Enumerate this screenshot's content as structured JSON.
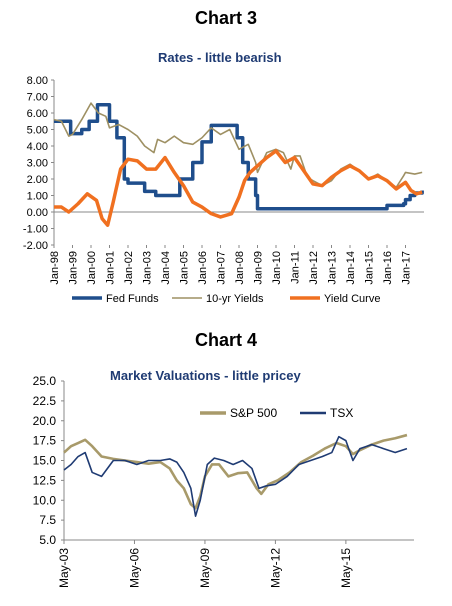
{
  "chart_data": [
    {
      "type": "line",
      "heading": "Chart 3",
      "title": "Rates - little bearish",
      "ylim": [
        -2,
        8
      ],
      "yticks": [
        "8.00",
        "7.00",
        "6.00",
        "5.00",
        "4.00",
        "3.00",
        "2.00",
        "1.00",
        "0.00",
        "-1.00",
        "-2.00"
      ],
      "xticks": [
        "Jan-98",
        "Jan-99",
        "Jan-00",
        "Jan-01",
        "Jan-02",
        "Jan-03",
        "Jan-04",
        "Jan-05",
        "Jan-06",
        "Jan-07",
        "Jan-08",
        "Jan-09",
        "Jan-10",
        "Jan-11",
        "Jan-12",
        "Jan-13",
        "Jan-14",
        "Jan-15",
        "Jan-16",
        "Jan-17"
      ],
      "grid": false,
      "legend_position": "bottom",
      "series": [
        {
          "name": "Fed Funds",
          "color": "#1f4e8c",
          "x": [
            1998.0,
            1998.75,
            1998.9,
            1999.5,
            1999.9,
            2000.35,
            2000.9,
            2001.0,
            2001.4,
            2001.8,
            2002.0,
            2002.9,
            2003.5,
            2004.5,
            2004.8,
            2005.5,
            2006.0,
            2006.5,
            2007.6,
            2007.9,
            2008.2,
            2008.5,
            2008.9,
            2009.0,
            2010,
            2011,
            2012,
            2013,
            2014,
            2015.9,
            2016.0,
            2016.9,
            2017.0,
            2017.25,
            2017.5,
            2017.9
          ],
          "y": [
            5.5,
            5.5,
            4.75,
            5.0,
            5.5,
            6.5,
            6.5,
            5.5,
            4.5,
            2.0,
            1.75,
            1.25,
            1.0,
            1.0,
            2.0,
            3.0,
            4.25,
            5.25,
            5.25,
            4.5,
            3.0,
            2.0,
            1.0,
            0.2,
            0.2,
            0.2,
            0.2,
            0.2,
            0.2,
            0.2,
            0.4,
            0.5,
            0.75,
            1.0,
            1.15,
            1.3
          ]
        },
        {
          "name": "10-yr Yields",
          "color": "#9e9063",
          "x": [
            1998.0,
            1998.4,
            1998.8,
            1999.0,
            1999.5,
            2000.0,
            2000.4,
            2000.8,
            2001.0,
            2001.5,
            2002.0,
            2002.5,
            2002.9,
            2003.4,
            2003.6,
            2004.0,
            2004.5,
            2005.0,
            2005.5,
            2006.0,
            2006.5,
            2007.0,
            2007.5,
            2008.0,
            2008.5,
            2008.9,
            2009.0,
            2009.5,
            2010.0,
            2010.4,
            2010.8,
            2011.0,
            2011.3,
            2011.7,
            2012.0,
            2012.5,
            2013.0,
            2013.5,
            2014.0,
            2014.5,
            2015.0,
            2015.5,
            2016.0,
            2016.5,
            2016.9,
            2017.0,
            2017.5,
            2017.9
          ],
          "y": [
            5.6,
            5.5,
            4.6,
            4.7,
            5.6,
            6.6,
            6.0,
            5.8,
            5.1,
            5.3,
            5.0,
            4.6,
            4.0,
            3.6,
            4.4,
            4.2,
            4.6,
            4.2,
            4.1,
            4.5,
            5.1,
            4.7,
            5.0,
            3.8,
            4.1,
            3.0,
            2.4,
            3.6,
            3.8,
            3.6,
            2.6,
            3.4,
            3.4,
            2.1,
            1.9,
            1.6,
            1.9,
            2.6,
            2.9,
            2.5,
            2.0,
            2.3,
            1.9,
            1.5,
            2.2,
            2.4,
            2.3,
            2.4
          ]
        },
        {
          "name": "Yield Curve",
          "color": "#f07020",
          "x": [
            1998.0,
            1998.4,
            1998.8,
            1999.3,
            1999.8,
            2000.3,
            2000.6,
            2000.9,
            2001.2,
            2001.6,
            2002.0,
            2002.5,
            2003.0,
            2003.5,
            2004.0,
            2004.5,
            2005.0,
            2005.5,
            2006.0,
            2006.5,
            2007.0,
            2007.3,
            2007.6,
            2008.0,
            2008.3,
            2008.6,
            2009.0,
            2009.5,
            2010.0,
            2010.5,
            2011.0,
            2011.5,
            2012.0,
            2012.5,
            2013.0,
            2013.5,
            2014.0,
            2014.5,
            2015.0,
            2015.5,
            2016.0,
            2016.5,
            2017.0,
            2017.3,
            2017.6,
            2017.9
          ],
          "y": [
            0.3,
            0.3,
            0.0,
            0.5,
            1.1,
            0.7,
            -0.4,
            -0.8,
            0.6,
            2.6,
            3.2,
            3.1,
            2.6,
            2.6,
            3.3,
            2.4,
            1.6,
            0.6,
            0.3,
            -0.1,
            -0.3,
            -0.2,
            -0.1,
            0.9,
            1.9,
            2.4,
            2.8,
            3.3,
            3.7,
            3.0,
            3.3,
            2.5,
            1.7,
            1.6,
            2.1,
            2.5,
            2.8,
            2.5,
            2.0,
            2.2,
            1.9,
            1.4,
            1.8,
            1.3,
            1.1,
            1.2
          ]
        }
      ]
    },
    {
      "type": "line",
      "heading": "Chart 4",
      "title": "Market Valuations - little pricey",
      "ylim": [
        5,
        25
      ],
      "yticks": [
        "25.0",
        "22.5",
        "20.0",
        "17.5",
        "15.0",
        "12.5",
        "10.0",
        "7.5",
        "5.0"
      ],
      "xticks": [
        "May-03",
        "May-06",
        "May-09",
        "May-12",
        "May-15"
      ],
      "grid": false,
      "legend_position": "top-center",
      "series": [
        {
          "name": "S&P 500",
          "color": "#a89a6a",
          "x": [
            2003.4,
            2003.7,
            2004.0,
            2004.3,
            2004.6,
            2005.0,
            2005.5,
            2006.0,
            2006.5,
            2007.0,
            2007.5,
            2007.9,
            2008.2,
            2008.5,
            2008.8,
            2009.0,
            2009.2,
            2009.4,
            2009.7,
            2010.0,
            2010.4,
            2010.8,
            2011.2,
            2011.6,
            2011.8,
            2012.1,
            2012.5,
            2013.0,
            2013.5,
            2014.0,
            2014.5,
            2015.0,
            2015.4,
            2015.7,
            2016.0,
            2016.5,
            2017.0,
            2017.5,
            2018.0
          ],
          "y": [
            16.0,
            16.8,
            17.2,
            17.6,
            16.8,
            15.5,
            15.2,
            15.0,
            14.8,
            14.6,
            14.8,
            14.0,
            12.5,
            11.5,
            9.5,
            9.0,
            10.5,
            13.0,
            14.5,
            14.5,
            13.0,
            13.4,
            13.5,
            11.5,
            10.8,
            12.0,
            12.5,
            13.5,
            14.8,
            15.6,
            16.5,
            17.2,
            16.8,
            15.8,
            16.3,
            17.0,
            17.5,
            17.8,
            18.2
          ]
        },
        {
          "name": "TSX",
          "color": "#1f3b73",
          "x": [
            2003.4,
            2003.7,
            2004.0,
            2004.3,
            2004.6,
            2005.0,
            2005.5,
            2006.0,
            2006.5,
            2007.0,
            2007.5,
            2007.9,
            2008.2,
            2008.5,
            2008.8,
            2009.0,
            2009.2,
            2009.5,
            2009.8,
            2010.2,
            2010.6,
            2011.0,
            2011.4,
            2011.7,
            2012.0,
            2012.4,
            2012.9,
            2013.4,
            2013.9,
            2014.4,
            2014.8,
            2015.1,
            2015.4,
            2015.7,
            2016.0,
            2016.5,
            2017.0,
            2017.5,
            2018.0
          ],
          "y": [
            13.8,
            14.5,
            15.5,
            16.0,
            13.5,
            13.0,
            15.0,
            15.0,
            14.5,
            15.0,
            15.0,
            15.2,
            14.8,
            13.5,
            11.5,
            8.0,
            10.0,
            14.5,
            15.3,
            15.0,
            14.5,
            15.0,
            14.0,
            11.5,
            11.8,
            12.0,
            13.0,
            14.5,
            15.0,
            15.5,
            16.0,
            18.0,
            17.5,
            15.0,
            16.5,
            17.0,
            16.5,
            16.0,
            16.5
          ]
        }
      ]
    }
  ]
}
